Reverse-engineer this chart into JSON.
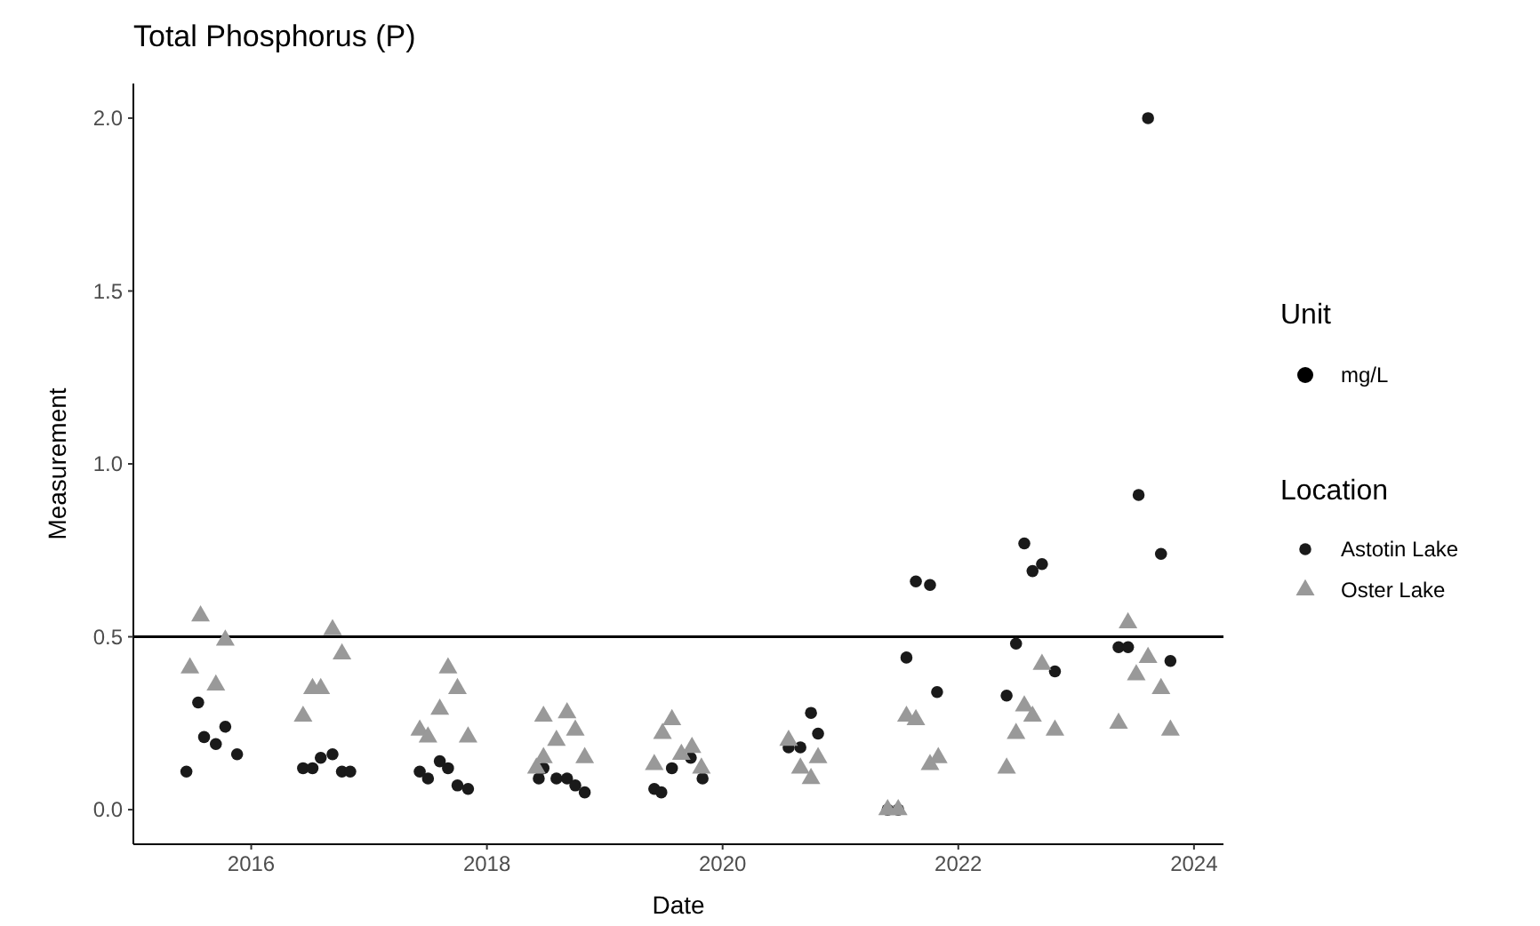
{
  "chart_data": {
    "type": "scatter",
    "title": "Total Phosphorus (P)",
    "xlabel": "Date",
    "ylabel": "Measurement",
    "legend_title": "Location",
    "annotations": [
      "Unit",
      "mg/L"
    ],
    "xlim": [
      2015.0,
      2024.25
    ],
    "xticks": [
      2016,
      2018,
      2020,
      2022,
      2024
    ],
    "ylim": [
      -0.1,
      2.1
    ],
    "yticks": [
      {
        "value": 0,
        "label": "0.0"
      },
      {
        "value": 0.5,
        "label": "0.5"
      },
      {
        "value": 1,
        "label": "1.0"
      },
      {
        "value": 1.5,
        "label": "1.5"
      },
      {
        "value": 2,
        "label": "2.0"
      }
    ],
    "grid": false,
    "legend": "right",
    "ref_lines": [
      {
        "axis": "y",
        "value": 0.5,
        "color": "#000000"
      }
    ],
    "series": [
      {
        "name": "Astotin Lake",
        "color": "#1a1a1a",
        "marker": "circle",
        "x": [
          2015.45,
          2015.55,
          2015.6,
          2015.7,
          2015.78,
          2015.88,
          2016.44,
          2016.52,
          2016.59,
          2016.69,
          2016.77,
          2016.84,
          2017.43,
          2017.5,
          2017.6,
          2017.67,
          2017.75,
          2017.84,
          2018.44,
          2018.48,
          2018.59,
          2018.68,
          2018.75,
          2018.83,
          2019.42,
          2019.48,
          2019.57,
          2019.73,
          2019.83,
          2020.56,
          2020.66,
          2020.75,
          2020.81,
          2021.4,
          2021.49,
          2021.56,
          2021.64,
          2021.76,
          2021.82,
          2022.41,
          2022.49,
          2022.56,
          2022.63,
          2022.71,
          2022.82,
          2023.36,
          2023.44,
          2023.53,
          2023.61,
          2023.72,
          2023.8
        ],
        "values": [
          0.11,
          0.31,
          0.21,
          0.19,
          0.24,
          0.16,
          0.12,
          0.12,
          0.15,
          0.16,
          0.11,
          0.11,
          0.11,
          0.09,
          0.14,
          0.12,
          0.07,
          0.06,
          0.09,
          0.12,
          0.09,
          0.09,
          0.07,
          0.05,
          0.06,
          0.05,
          0.12,
          0.15,
          0.09,
          0.18,
          0.18,
          0.28,
          0.22,
          0.0,
          0.0,
          0.44,
          0.66,
          0.65,
          0.34,
          0.33,
          0.48,
          0.77,
          0.69,
          0.71,
          0.4,
          0.47,
          0.47,
          0.91,
          2.0,
          0.74,
          0.43
        ]
      },
      {
        "name": "Oster Lake",
        "color": "#999999",
        "marker": "triangle",
        "x": [
          2015.48,
          2015.57,
          2015.7,
          2015.78,
          2016.44,
          2016.52,
          2016.59,
          2016.69,
          2016.77,
          2017.43,
          2017.5,
          2017.6,
          2017.67,
          2017.75,
          2017.84,
          2018.42,
          2018.48,
          2018.48,
          2018.59,
          2018.68,
          2018.75,
          2018.83,
          2019.42,
          2019.49,
          2019.57,
          2019.65,
          2019.74,
          2019.82,
          2020.56,
          2020.66,
          2020.75,
          2020.81,
          2021.4,
          2021.49,
          2021.56,
          2021.64,
          2021.76,
          2021.83,
          2022.41,
          2022.49,
          2022.56,
          2022.63,
          2022.71,
          2022.82,
          2023.36,
          2023.44,
          2023.51,
          2023.61,
          2023.72,
          2023.8
        ],
        "values": [
          0.41,
          0.56,
          0.36,
          0.49,
          0.27,
          0.35,
          0.35,
          0.52,
          0.45,
          0.23,
          0.21,
          0.29,
          0.41,
          0.35,
          0.21,
          0.12,
          0.27,
          0.15,
          0.2,
          0.28,
          0.23,
          0.15,
          0.13,
          0.22,
          0.26,
          0.16,
          0.18,
          0.12,
          0.2,
          0.12,
          0.09,
          0.15,
          0.0,
          0.0,
          0.27,
          0.26,
          0.13,
          0.15,
          0.12,
          0.22,
          0.3,
          0.27,
          0.42,
          0.23,
          0.25,
          0.54,
          0.39,
          0.44,
          0.35,
          0.23
        ]
      }
    ]
  }
}
